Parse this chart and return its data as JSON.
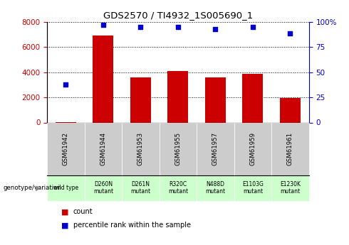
{
  "title": "GDS2570 / TI4932_1S005690_1",
  "samples": [
    "GSM61942",
    "GSM61944",
    "GSM61953",
    "GSM61955",
    "GSM61957",
    "GSM61959",
    "GSM61961"
  ],
  "counts": [
    50,
    6900,
    3600,
    4100,
    3600,
    3900,
    1950
  ],
  "percentiles": [
    38,
    97,
    95,
    95,
    93,
    95,
    89
  ],
  "genotypes": [
    "wild type",
    "D260N\nmutant",
    "D261N\nmutant",
    "R320C\nmutant",
    "N488D\nmutant",
    "E1103G\nmutant",
    "E1230K\nmutant"
  ],
  "bar_color": "#cc0000",
  "dot_color": "#0000cc",
  "left_axis_color": "#cc0000",
  "right_axis_color": "#0000cc",
  "grid_color": "#000000",
  "sample_bg_color": "#cccccc",
  "genotype_bg_color": "#ccffcc",
  "wildtype_bg_color": "#ccffcc",
  "ylim_left": [
    0,
    8000
  ],
  "ylim_right": [
    0,
    100
  ],
  "left_ticks": [
    0,
    2000,
    4000,
    6000,
    8000
  ],
  "right_ticks": [
    0,
    25,
    50,
    75,
    100
  ],
  "right_tick_labels": [
    "0",
    "25",
    "50",
    "75",
    "100%"
  ]
}
